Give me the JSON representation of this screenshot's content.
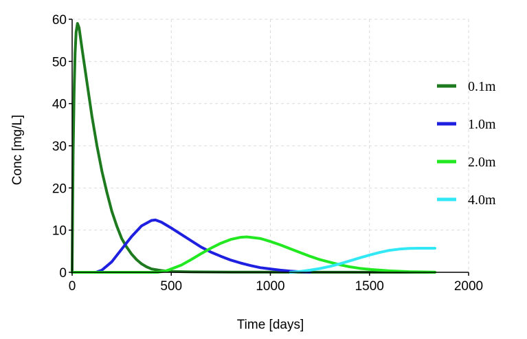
{
  "chart_data": {
    "type": "line",
    "xlabel": "Time [days]",
    "ylabel": "Conc [mg/L]",
    "xlim": [
      0,
      2000
    ],
    "ylim": [
      0,
      60
    ],
    "xticks": [
      0,
      500,
      1000,
      1500,
      2000
    ],
    "yticks": [
      0,
      10,
      20,
      30,
      40,
      50,
      60
    ],
    "grid": true,
    "legend_position": "right",
    "series": [
      {
        "name": "0.1m",
        "color": "#1e7a1e",
        "points": [
          [
            0,
            0
          ],
          [
            2,
            13
          ],
          [
            5,
            28
          ],
          [
            10,
            43
          ],
          [
            15,
            52
          ],
          [
            20,
            57
          ],
          [
            27,
            59
          ],
          [
            35,
            58
          ],
          [
            50,
            53
          ],
          [
            75,
            45
          ],
          [
            100,
            37
          ],
          [
            125,
            30
          ],
          [
            150,
            24
          ],
          [
            175,
            19
          ],
          [
            200,
            14.5
          ],
          [
            225,
            11
          ],
          [
            250,
            8
          ],
          [
            275,
            6
          ],
          [
            300,
            4.3
          ],
          [
            325,
            3
          ],
          [
            350,
            2
          ],
          [
            375,
            1.3
          ],
          [
            400,
            0.8
          ],
          [
            450,
            0.4
          ],
          [
            500,
            0.2
          ],
          [
            600,
            0.1
          ],
          [
            800,
            0.05
          ],
          [
            1200,
            0.02
          ],
          [
            1830,
            0
          ]
        ]
      },
      {
        "name": "1.0m",
        "color": "#1f1fe0",
        "points": [
          [
            0,
            0
          ],
          [
            120,
            0
          ],
          [
            150,
            0.5
          ],
          [
            200,
            2.5
          ],
          [
            250,
            5.5
          ],
          [
            300,
            8.5
          ],
          [
            350,
            11
          ],
          [
            400,
            12.3
          ],
          [
            420,
            12.4
          ],
          [
            450,
            11.9
          ],
          [
            500,
            10.5
          ],
          [
            550,
            9
          ],
          [
            600,
            7.5
          ],
          [
            650,
            6
          ],
          [
            700,
            4.8
          ],
          [
            750,
            3.8
          ],
          [
            800,
            2.9
          ],
          [
            850,
            2.2
          ],
          [
            900,
            1.6
          ],
          [
            950,
            1.1
          ],
          [
            1000,
            0.8
          ],
          [
            1050,
            0.5
          ],
          [
            1100,
            0.3
          ],
          [
            1150,
            0.15
          ],
          [
            1200,
            0.05
          ]
        ]
      },
      {
        "name": "2.0m",
        "color": "#22e822",
        "points": [
          [
            0,
            0
          ],
          [
            430,
            0
          ],
          [
            470,
            0.3
          ],
          [
            500,
            0.8
          ],
          [
            550,
            1.7
          ],
          [
            600,
            3
          ],
          [
            650,
            4.4
          ],
          [
            700,
            5.7
          ],
          [
            750,
            6.9
          ],
          [
            800,
            7.8
          ],
          [
            850,
            8.3
          ],
          [
            880,
            8.4
          ],
          [
            900,
            8.3
          ],
          [
            950,
            8
          ],
          [
            1000,
            7.3
          ],
          [
            1050,
            6.5
          ],
          [
            1100,
            5.6
          ],
          [
            1150,
            4.7
          ],
          [
            1200,
            3.8
          ],
          [
            1250,
            3
          ],
          [
            1300,
            2.4
          ],
          [
            1350,
            1.8
          ],
          [
            1400,
            1.3
          ],
          [
            1450,
            0.95
          ],
          [
            1500,
            0.7
          ],
          [
            1600,
            0.35
          ],
          [
            1700,
            0.15
          ],
          [
            1830,
            0.05
          ]
        ]
      },
      {
        "name": "4.0m",
        "color": "#33e8f5",
        "points": [
          [
            1100,
            0
          ],
          [
            1150,
            0.2
          ],
          [
            1200,
            0.5
          ],
          [
            1250,
            0.9
          ],
          [
            1300,
            1.4
          ],
          [
            1350,
            2
          ],
          [
            1400,
            2.7
          ],
          [
            1450,
            3.4
          ],
          [
            1500,
            4.1
          ],
          [
            1550,
            4.7
          ],
          [
            1600,
            5.2
          ],
          [
            1650,
            5.5
          ],
          [
            1700,
            5.65
          ],
          [
            1750,
            5.7
          ],
          [
            1800,
            5.7
          ],
          [
            1830,
            5.7
          ]
        ]
      }
    ]
  }
}
